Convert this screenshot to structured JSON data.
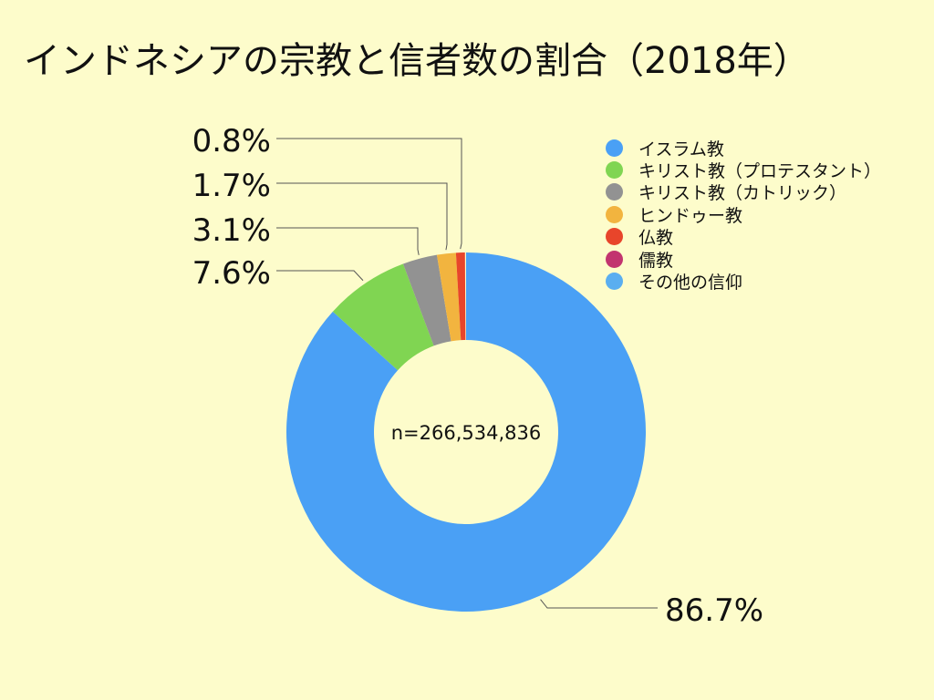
{
  "title": "インドネシアの宗教と信者数の割合（2018年）",
  "chart_data": {
    "type": "pie",
    "variant": "donut",
    "center_label": "n=266,534,836",
    "legend_position": "top-right",
    "series": [
      {
        "name": "イスラム教",
        "value": 86.7,
        "label": "86.7%",
        "color": "#4aa0f5"
      },
      {
        "name": "キリスト教（プロテスタント）",
        "value": 7.6,
        "label": "7.6%",
        "color": "#80d552"
      },
      {
        "name": "キリスト教（カトリック）",
        "value": 3.1,
        "label": "3.1%",
        "color": "#929292"
      },
      {
        "name": "ヒンドゥー教",
        "value": 1.7,
        "label": "1.7%",
        "color": "#f2b43f"
      },
      {
        "name": "仏教",
        "value": 0.8,
        "label": "0.8%",
        "color": "#e8452b"
      },
      {
        "name": "儒教",
        "value": null,
        "label": "",
        "color": "#c2346f"
      },
      {
        "name": "その他の信仰",
        "value": null,
        "label": "",
        "color": "#5aaef0"
      }
    ]
  }
}
